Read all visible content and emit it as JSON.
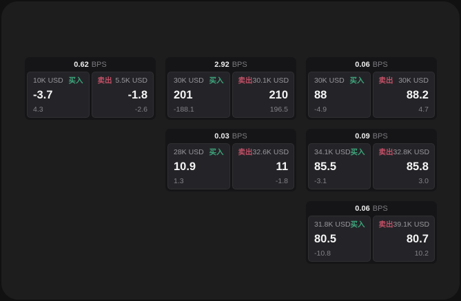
{
  "labels": {
    "bps": "BPS",
    "buy": "买入",
    "sell": "卖出"
  },
  "colors": {
    "buy_green": "#3ea47b",
    "sell_red": "#c15066",
    "window_bg": "#1d1d1e",
    "card_bg": "#151517",
    "panel_bg": "#242428"
  },
  "cards": [
    {
      "row": 0,
      "col": 0,
      "bps": "0.62",
      "buy": {
        "size": "10K USD",
        "value": "-3.7",
        "sub": "4.3"
      },
      "sell": {
        "size": "5.5K USD",
        "value": "-1.8",
        "sub": "-2.6"
      }
    },
    {
      "row": 0,
      "col": 1,
      "bps": "2.92",
      "buy": {
        "size": "30K USD",
        "value": "201",
        "sub": "-188.1"
      },
      "sell": {
        "size": "30.1K USD",
        "value": "210",
        "sub": "196.5"
      }
    },
    {
      "row": 0,
      "col": 2,
      "bps": "0.06",
      "buy": {
        "size": "30K USD",
        "value": "88",
        "sub": "-4.9"
      },
      "sell": {
        "size": "30K USD",
        "value": "88.2",
        "sub": "4.7"
      }
    },
    {
      "row": 1,
      "col": 1,
      "bps": "0.03",
      "buy": {
        "size": "28K USD",
        "value": "10.9",
        "sub": "1.3"
      },
      "sell": {
        "size": "32.6K USD",
        "value": "11",
        "sub": "-1.8"
      }
    },
    {
      "row": 1,
      "col": 2,
      "bps": "0.09",
      "buy": {
        "size": "34.1K USD",
        "value": "85.5",
        "sub": "-3.1"
      },
      "sell": {
        "size": "32.8K USD",
        "value": "85.8",
        "sub": "3.0"
      }
    },
    {
      "row": 2,
      "col": 2,
      "bps": "0.06",
      "buy": {
        "size": "31.8K USD",
        "value": "80.5",
        "sub": "-10.8"
      },
      "sell": {
        "size": "39.1K USD",
        "value": "80.7",
        "sub": "10.2"
      }
    }
  ]
}
